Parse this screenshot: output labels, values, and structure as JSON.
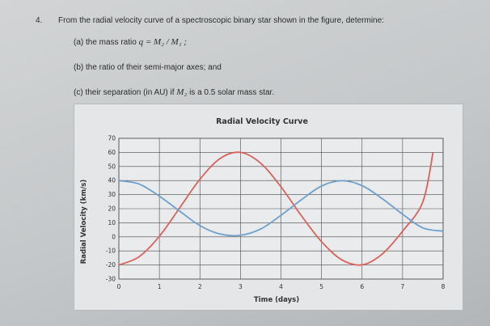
{
  "question": {
    "number": "4.",
    "stem": "From the radial velocity curve of a spectroscopic binary star shown in the figure, determine:",
    "part_a": {
      "prefix": "(a) the mass ratio",
      "formula": "q = M₂ / M₁ ;"
    },
    "part_b": "(b) the ratio of their semi-major axes; and",
    "part_c": {
      "prefix": "(c) their separation (in AU) if",
      "symbol": "M₂",
      "suffix": "is a 0.5 solar mass star."
    }
  },
  "chart_data": {
    "type": "line",
    "title": "Radial Velocity Curve",
    "xlabel": "Time (days)",
    "ylabel": "Radial Velocity (km/s)",
    "xlim": [
      0,
      8
    ],
    "ylim": [
      -30,
      70
    ],
    "xticks": [
      0,
      1,
      2,
      3,
      4,
      5,
      6,
      7,
      8
    ],
    "yticks": [
      -30,
      -20,
      -10,
      0,
      10,
      20,
      30,
      40,
      50,
      60,
      70
    ],
    "grid": true,
    "legend": "none",
    "series": [
      {
        "color": "#d9625b",
        "x": [
          0,
          0.5,
          1,
          1.5,
          2,
          2.5,
          3,
          3.5,
          4,
          4.5,
          5,
          5.5,
          6,
          6.5,
          7,
          7.5,
          7.75
        ],
        "y": [
          -20,
          -14.1,
          0.4,
          20.6,
          40.9,
          55.7,
          60,
          52.3,
          35.5,
          15.1,
          -3.4,
          -16.3,
          -19.9,
          -12.1,
          4,
          24.8,
          60
        ]
      },
      {
        "color": "#6f9fcb",
        "x": [
          0,
          0.5,
          1,
          1.5,
          2,
          2.5,
          3,
          3.5,
          4,
          4.5,
          5,
          5.5,
          6,
          6.5,
          7,
          7.5,
          8
        ],
        "y": [
          40,
          37.5,
          28.9,
          18.3,
          8,
          2,
          1.1,
          5.6,
          15.3,
          26.3,
          36.1,
          39.9,
          36.4,
          27.1,
          16.1,
          6.4,
          4
        ]
      }
    ]
  }
}
